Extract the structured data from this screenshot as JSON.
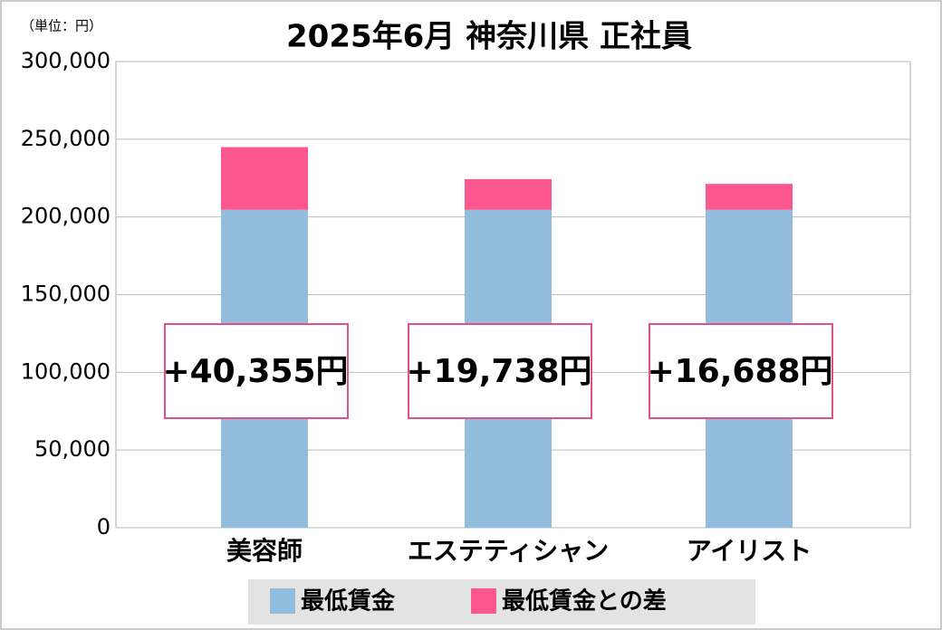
{
  "chart_data": {
    "type": "stacked_bar",
    "title": "2025年6月 神奈川県 正社員",
    "unit_note": "（単位：円）",
    "categories": [
      "美容師",
      "エステティシャン",
      "アイリスト"
    ],
    "series": [
      {
        "name": "最低賃金",
        "color": "#92bddd",
        "values": [
          204600,
          204600,
          204600
        ]
      },
      {
        "name": "最低賃金との差",
        "color": "#fd5790",
        "values": [
          40355,
          19738,
          16688
        ],
        "value_labels": [
          "+40,355円",
          "+19,738円",
          "+16,688円"
        ]
      }
    ],
    "ylim": [
      0,
      300000
    ],
    "yticks": [
      0,
      {
        "value": 50000,
        "label": "50,000"
      },
      {
        "value": 100000,
        "label": "100,000"
      },
      {
        "value": 150000,
        "label": "150,000"
      },
      {
        "value": 200000,
        "label": "200,000"
      },
      {
        "value": 250000,
        "label": "250,000"
      },
      {
        "value": 300000,
        "label": "300,000"
      }
    ],
    "grid": true
  }
}
